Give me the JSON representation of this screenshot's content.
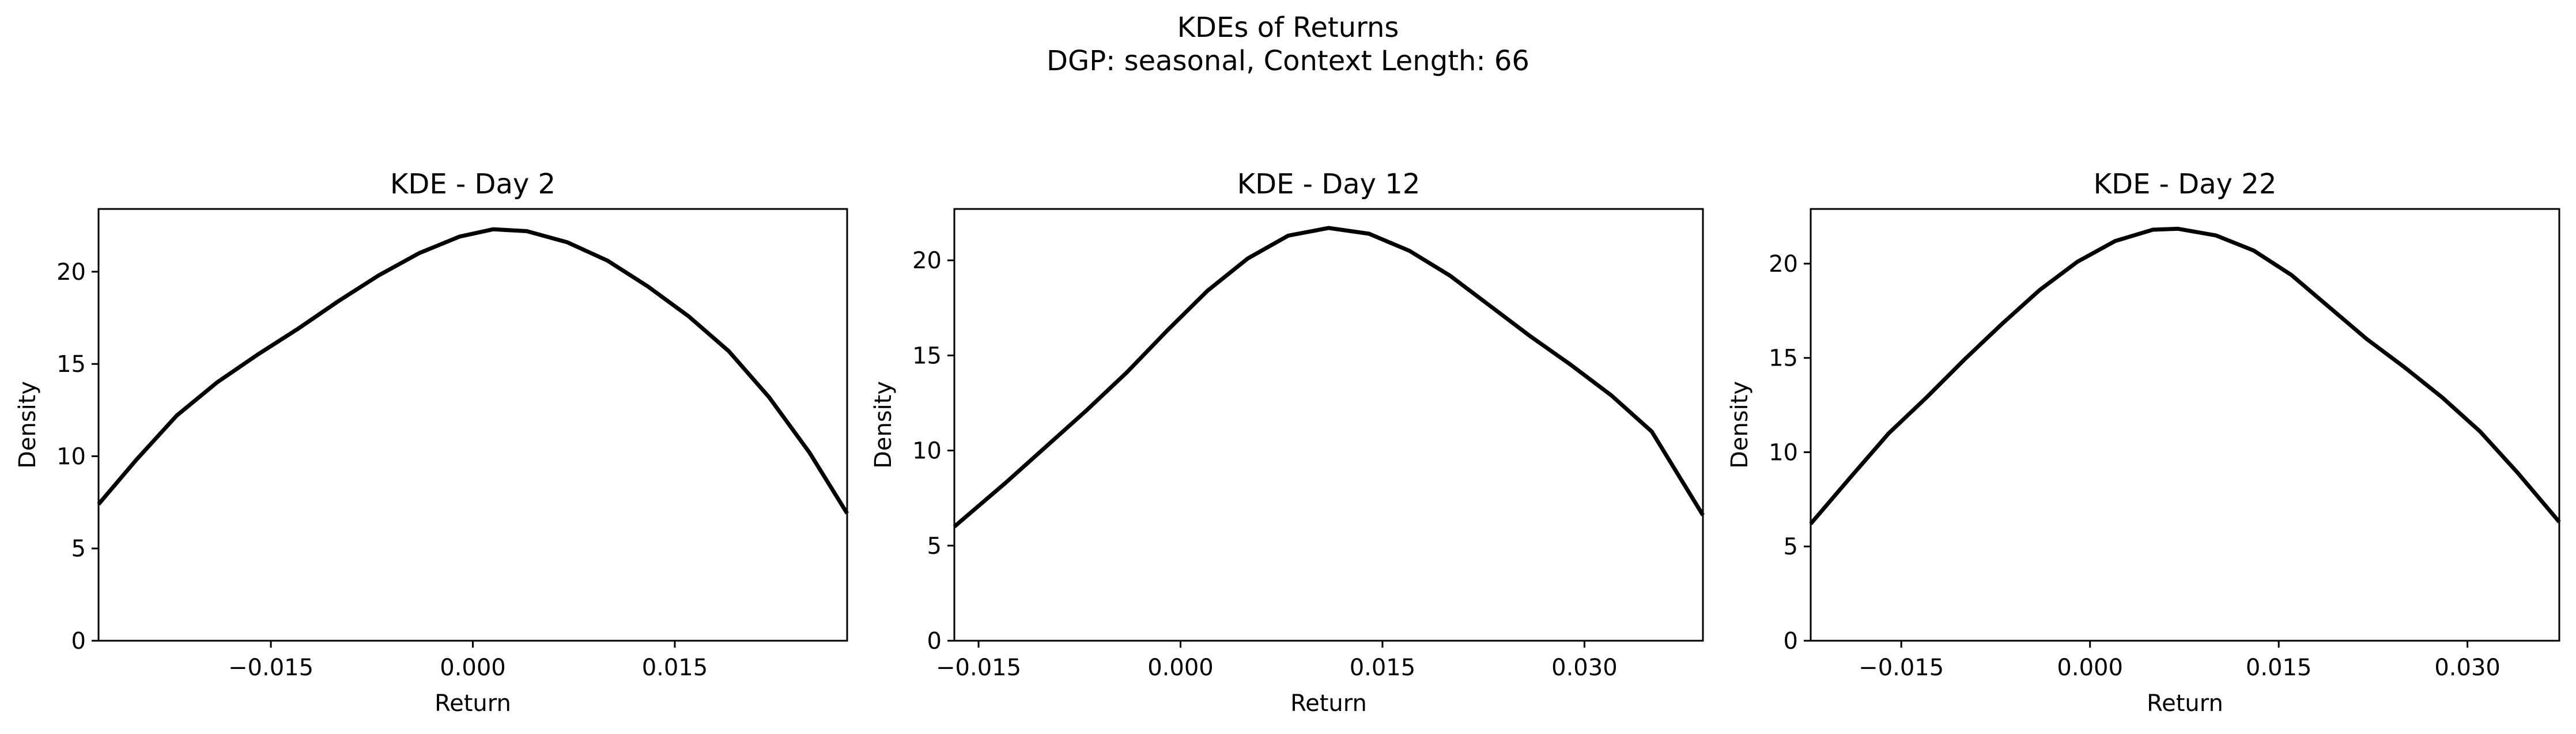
{
  "figure": {
    "title_line1": "KDEs of Returns",
    "title_line2": "DGP: seasonal, Context Length: 66"
  },
  "chart_data": [
    {
      "type": "line",
      "title": "KDE - Day 2",
      "xlabel": "Return",
      "ylabel": "Density",
      "xlim": [
        -0.0278,
        0.0278
      ],
      "ylim": [
        0,
        23.4
      ],
      "xticks": [
        -0.015,
        0.0,
        0.015
      ],
      "xtick_labels": [
        "−0.015",
        "0.000",
        "0.015"
      ],
      "yticks": [
        0,
        5,
        10,
        15,
        20
      ],
      "ytick_labels": [
        "0",
        "5",
        "10",
        "15",
        "20"
      ],
      "grid": false,
      "color": "#000000",
      "series": [
        {
          "x": [
            -0.0278,
            -0.025,
            -0.022,
            -0.019,
            -0.016,
            -0.013,
            -0.01,
            -0.007,
            -0.004,
            -0.001,
            0.0015,
            0.004,
            0.007,
            0.01,
            0.013,
            0.016,
            0.019,
            0.022,
            0.025,
            0.0278
          ],
          "y": [
            7.4,
            9.8,
            12.2,
            14.0,
            15.5,
            16.9,
            18.4,
            19.8,
            21.0,
            21.9,
            22.3,
            22.2,
            21.6,
            20.6,
            19.2,
            17.6,
            15.7,
            13.2,
            10.2,
            6.9
          ]
        }
      ]
    },
    {
      "type": "line",
      "title": "KDE - Day 12",
      "xlabel": "Return",
      "ylabel": "Density",
      "xlim": [
        -0.0168,
        0.0388
      ],
      "ylim": [
        0,
        22.7
      ],
      "xticks": [
        -0.015,
        0.0,
        0.015,
        0.03
      ],
      "xtick_labels": [
        "−0.015",
        "0.000",
        "0.015",
        "0.030"
      ],
      "yticks": [
        0,
        5,
        10,
        15,
        20
      ],
      "ytick_labels": [
        "0",
        "5",
        "10",
        "15",
        "20"
      ],
      "grid": false,
      "color": "#000000",
      "series": [
        {
          "x": [
            -0.0168,
            -0.013,
            -0.01,
            -0.007,
            -0.004,
            -0.001,
            0.002,
            0.005,
            0.008,
            0.011,
            0.014,
            0.017,
            0.02,
            0.023,
            0.026,
            0.029,
            0.032,
            0.035,
            0.0388
          ],
          "y": [
            6.0,
            8.3,
            10.2,
            12.1,
            14.1,
            16.3,
            18.4,
            20.1,
            21.3,
            21.7,
            21.4,
            20.5,
            19.2,
            17.6,
            16.0,
            14.5,
            12.9,
            11.0,
            6.6
          ]
        }
      ]
    },
    {
      "type": "line",
      "title": "KDE - Day 22",
      "xlabel": "Return",
      "ylabel": "Density",
      "xlim": [
        -0.0222,
        0.0373
      ],
      "ylim": [
        0,
        22.9
      ],
      "xticks": [
        -0.015,
        0.0,
        0.015,
        0.03
      ],
      "xtick_labels": [
        "−0.015",
        "0.000",
        "0.015",
        "0.030"
      ],
      "yticks": [
        0,
        5,
        10,
        15,
        20
      ],
      "ytick_labels": [
        "0",
        "5",
        "10",
        "15",
        "20"
      ],
      "grid": false,
      "color": "#000000",
      "series": [
        {
          "x": [
            -0.0222,
            -0.019,
            -0.016,
            -0.013,
            -0.01,
            -0.007,
            -0.004,
            -0.001,
            0.002,
            0.005,
            0.007,
            0.01,
            0.013,
            0.016,
            0.019,
            0.022,
            0.025,
            0.028,
            0.031,
            0.034,
            0.0373
          ],
          "y": [
            6.2,
            8.7,
            11.0,
            12.9,
            14.9,
            16.8,
            18.6,
            20.1,
            21.2,
            21.8,
            21.85,
            21.5,
            20.7,
            19.4,
            17.7,
            16.0,
            14.5,
            12.9,
            11.1,
            8.9,
            6.3
          ]
        }
      ]
    }
  ]
}
